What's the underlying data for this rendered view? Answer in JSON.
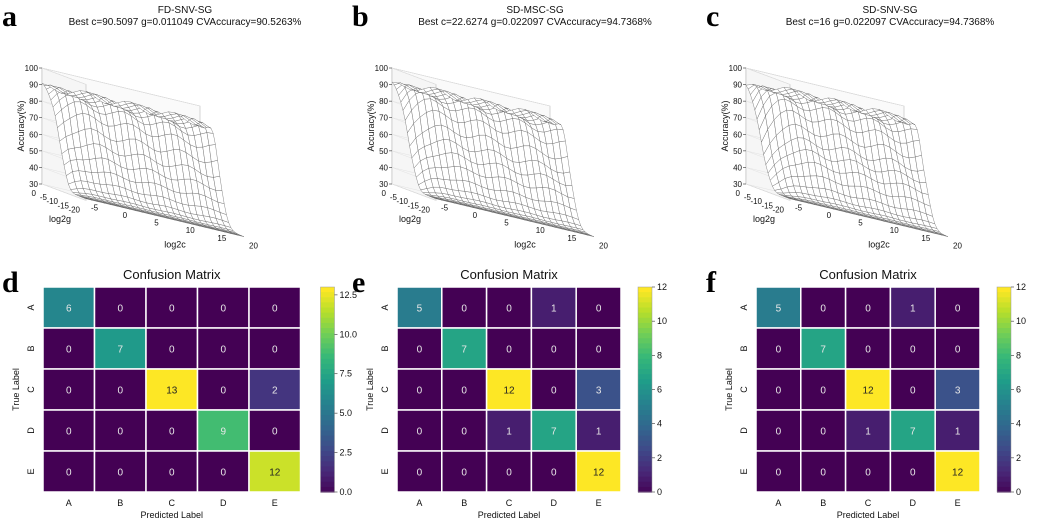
{
  "figure": {
    "panels": {
      "a": "a",
      "b": "b",
      "c": "c",
      "d": "d",
      "e": "e",
      "f": "f"
    }
  },
  "chart_data": [
    {
      "panel": "a",
      "type": "surface",
      "title": "FD-SNV-SG",
      "subtitle": "Best c=90.5097 g=0.011049 CVAccuracy=90.5263%",
      "zlabel": "Accuracy(%)",
      "xlabel": "log2c",
      "ylabel": "log2g",
      "zlim": [
        30,
        100
      ],
      "zticks": [
        "30",
        "40",
        "50",
        "60",
        "70",
        "80",
        "90",
        "100"
      ],
      "xticks": [
        "-5",
        "0",
        "5",
        "10",
        "15",
        "20"
      ],
      "yticks": [
        "0",
        "-5",
        "-10",
        "-15",
        "-20"
      ],
      "plateau": 90,
      "variant": 0
    },
    {
      "panel": "b",
      "type": "surface",
      "title": "SD-MSC-SG",
      "subtitle": "Best c=22.6274 g=0.022097 CVAccuracy=94.7368%",
      "zlabel": "Accuracy(%)",
      "xlabel": "log2c",
      "ylabel": "log2g",
      "zlim": [
        30,
        100
      ],
      "zticks": [
        "30",
        "40",
        "50",
        "60",
        "70",
        "80",
        "90",
        "100"
      ],
      "xticks": [
        "-5",
        "0",
        "5",
        "10",
        "15",
        "20"
      ],
      "yticks": [
        "0",
        "-5",
        "-10",
        "-15",
        "-20"
      ],
      "plateau": 92,
      "variant": 1
    },
    {
      "panel": "c",
      "type": "surface",
      "title": "SD-SNV-SG",
      "subtitle": "Best c=16 g=0.022097 CVAccuracy=94.7368%",
      "zlabel": "Accuracy(%)",
      "xlabel": "log2c",
      "ylabel": "log2g",
      "zlim": [
        30,
        100
      ],
      "zticks": [
        "30",
        "40",
        "50",
        "60",
        "70",
        "80",
        "90",
        "100"
      ],
      "xticks": [
        "-5",
        "0",
        "5",
        "10",
        "15",
        "20"
      ],
      "yticks": [
        "0",
        "-5",
        "-10",
        "-15",
        "-20"
      ],
      "plateau": 92,
      "variant": 2
    },
    {
      "panel": "d",
      "type": "heatmap",
      "title": "Confusion Matrix",
      "xlabel": "Predicted Label",
      "ylabel": "True Label",
      "labels": [
        "A",
        "B",
        "C",
        "D",
        "E"
      ],
      "matrix": [
        [
          6,
          0,
          0,
          0,
          0
        ],
        [
          0,
          7,
          0,
          0,
          0
        ],
        [
          0,
          0,
          13,
          0,
          2
        ],
        [
          0,
          0,
          0,
          9,
          0
        ],
        [
          0,
          0,
          0,
          0,
          12
        ]
      ],
      "vmin": 0,
      "vmax": 13,
      "colorbar_ticks": [
        0,
        2.5,
        5,
        7.5,
        10,
        12.5
      ],
      "colorbar_labels": [
        "0.0",
        "2.5",
        "5.0",
        "7.5",
        "10.0",
        "12.5"
      ]
    },
    {
      "panel": "e",
      "type": "heatmap",
      "title": "Confusion Matrix",
      "xlabel": "Predicted Label",
      "ylabel": "True Label",
      "labels": [
        "A",
        "B",
        "C",
        "D",
        "E"
      ],
      "matrix": [
        [
          5,
          0,
          0,
          1,
          0
        ],
        [
          0,
          7,
          0,
          0,
          0
        ],
        [
          0,
          0,
          12,
          0,
          3
        ],
        [
          0,
          0,
          1,
          7,
          1
        ],
        [
          0,
          0,
          0,
          0,
          12
        ]
      ],
      "vmin": 0,
      "vmax": 12,
      "colorbar_ticks": [
        0,
        2,
        4,
        6,
        8,
        10,
        12
      ],
      "colorbar_labels": [
        "0",
        "2",
        "4",
        "6",
        "8",
        "10",
        "12"
      ]
    },
    {
      "panel": "f",
      "type": "heatmap",
      "title": "Confusion Matrix",
      "xlabel": "Predicted Label",
      "ylabel": "True Label",
      "labels": [
        "A",
        "B",
        "C",
        "D",
        "E"
      ],
      "matrix": [
        [
          5,
          0,
          0,
          1,
          0
        ],
        [
          0,
          7,
          0,
          0,
          0
        ],
        [
          0,
          0,
          12,
          0,
          3
        ],
        [
          0,
          0,
          1,
          7,
          1
        ],
        [
          0,
          0,
          0,
          0,
          12
        ]
      ],
      "vmin": 0,
      "vmax": 12,
      "colorbar_ticks": [
        0,
        2,
        4,
        6,
        8,
        10,
        12
      ],
      "colorbar_labels": [
        "0",
        "2",
        "4",
        "6",
        "8",
        "10",
        "12"
      ]
    }
  ]
}
